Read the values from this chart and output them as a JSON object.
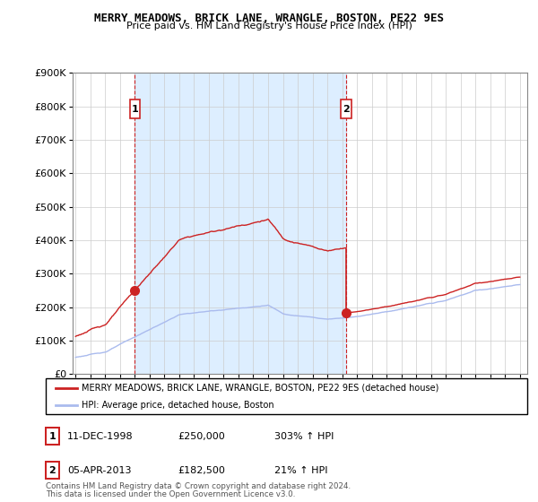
{
  "title": "MERRY MEADOWS, BRICK LANE, WRANGLE, BOSTON, PE22 9ES",
  "subtitle": "Price paid vs. HM Land Registry's House Price Index (HPI)",
  "ylim": [
    0,
    900000
  ],
  "yticks": [
    0,
    100000,
    200000,
    300000,
    400000,
    500000,
    600000,
    700000,
    800000,
    900000
  ],
  "ytick_labels": [
    "£0",
    "£100K",
    "£200K",
    "£300K",
    "£400K",
    "£500K",
    "£600K",
    "£700K",
    "£800K",
    "£900K"
  ],
  "sale1_year": 1999.0,
  "sale1_price": 250000,
  "sale2_year": 2013.27,
  "sale2_price": 182500,
  "hpi_color": "#aabbee",
  "price_color": "#cc2222",
  "shade_color": "#ddeeff",
  "annotation_color": "#cc2222",
  "grid_color": "#cccccc",
  "legend_line1": "MERRY MEADOWS, BRICK LANE, WRANGLE, BOSTON, PE22 9ES (detached house)",
  "legend_line2": "HPI: Average price, detached house, Boston",
  "note_line1": "Contains HM Land Registry data © Crown copyright and database right 2024.",
  "note_line2": "This data is licensed under the Open Government Licence v3.0.",
  "table_row1": [
    "1",
    "11-DEC-1998",
    "£250,000",
    "303% ↑ HPI"
  ],
  "table_row2": [
    "2",
    "05-APR-2013",
    "£182,500",
    "21% ↑ HPI"
  ]
}
